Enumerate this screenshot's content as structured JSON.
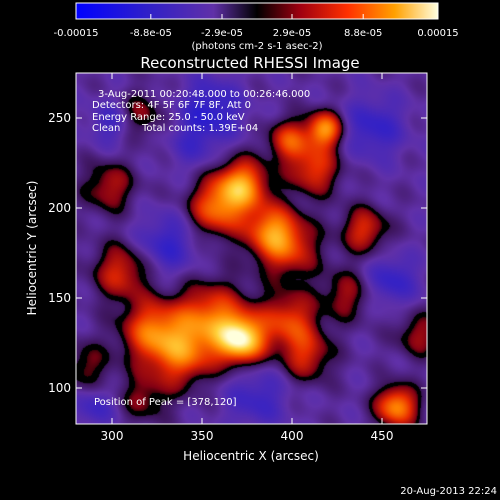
{
  "chart_data": {
    "type": "heatmap",
    "title": "Reconstructed RHESSI Image",
    "xlabel": "Heliocentric X (arcsec)",
    "ylabel": "Heliocentric Y (arcsec)",
    "xlim": [
      280,
      475
    ],
    "ylim": [
      80,
      275
    ],
    "x_ticks": [
      300,
      350,
      400,
      450
    ],
    "y_ticks": [
      100,
      150,
      200,
      250
    ],
    "colorbar": {
      "range": [
        -0.00015,
        0.00015
      ],
      "tick_labels": [
        "-0.00015",
        "-8.8e-05",
        "-2.9e-05",
        "2.9e-05",
        "8.8e-05",
        "0.00015"
      ],
      "tick_values": [
        -0.00015,
        -8.8e-05,
        -2.9e-05,
        2.9e-05,
        8.8e-05,
        0.00015
      ],
      "unit_label": "(photons cm-2 s-1 asec-2)"
    },
    "annotations": {
      "time": "3-Aug-2011 00:20:48.000 to 00:26:46.000",
      "detectors": "Detectors: 4F 5F 6F 7F 8F, Att 0",
      "energy": "Energy Range: 25.0 - 50.0 keV",
      "method": "Clean",
      "counts": "Total counts: 1.39E+04",
      "peak": "Position of Peak = [378,120]"
    },
    "blobs": [
      {
        "x": 372,
        "y": 127,
        "amp": 1.0,
        "sigma": 9
      },
      {
        "x": 355,
        "y": 138,
        "amp": 0.7,
        "sigma": 14
      },
      {
        "x": 322,
        "y": 132,
        "amp": 0.65,
        "sigma": 12
      },
      {
        "x": 338,
        "y": 118,
        "amp": 0.55,
        "sigma": 12
      },
      {
        "x": 305,
        "y": 165,
        "amp": 0.5,
        "sigma": 11
      },
      {
        "x": 398,
        "y": 138,
        "amp": 0.55,
        "sigma": 11
      },
      {
        "x": 408,
        "y": 118,
        "amp": 0.45,
        "sigma": 10
      },
      {
        "x": 372,
        "y": 213,
        "amp": 0.8,
        "sigma": 10
      },
      {
        "x": 358,
        "y": 200,
        "amp": 0.65,
        "sigma": 11
      },
      {
        "x": 388,
        "y": 188,
        "amp": 0.6,
        "sigma": 10
      },
      {
        "x": 398,
        "y": 178,
        "amp": 0.5,
        "sigma": 12
      },
      {
        "x": 412,
        "y": 222,
        "amp": 0.55,
        "sigma": 10
      },
      {
        "x": 418,
        "y": 244,
        "amp": 0.8,
        "sigma": 7
      },
      {
        "x": 398,
        "y": 238,
        "amp": 0.55,
        "sigma": 8
      },
      {
        "x": 440,
        "y": 188,
        "amp": 0.5,
        "sigma": 9
      },
      {
        "x": 298,
        "y": 212,
        "amp": 0.4,
        "sigma": 10
      },
      {
        "x": 315,
        "y": 252,
        "amp": 0.35,
        "sigma": 9
      },
      {
        "x": 458,
        "y": 90,
        "amp": 0.8,
        "sigma": 8
      },
      {
        "x": 470,
        "y": 130,
        "amp": 0.35,
        "sigma": 9
      },
      {
        "x": 430,
        "y": 152,
        "amp": 0.35,
        "sigma": 10
      },
      {
        "x": 285,
        "y": 112,
        "amp": 0.3,
        "sigma": 10
      },
      {
        "x": 318,
        "y": 95,
        "amp": 0.3,
        "sigma": 10
      },
      {
        "x": 355,
        "y": 255,
        "amp": -0.4,
        "sigma": 12
      },
      {
        "x": 330,
        "y": 180,
        "amp": -0.35,
        "sigma": 12
      },
      {
        "x": 455,
        "y": 160,
        "amp": -0.35,
        "sigma": 10
      },
      {
        "x": 300,
        "y": 248,
        "amp": -0.3,
        "sigma": 9
      },
      {
        "x": 445,
        "y": 245,
        "amp": -0.35,
        "sigma": 12
      },
      {
        "x": 380,
        "y": 95,
        "amp": -0.3,
        "sigma": 12
      },
      {
        "x": 290,
        "y": 90,
        "amp": -0.3,
        "sigma": 8
      },
      {
        "x": 345,
        "y": 235,
        "amp": -0.2,
        "sigma": 10
      }
    ]
  },
  "footer": {
    "timestamp": "20-Aug-2013 22:24"
  },
  "colors": {
    "background": "#000000",
    "text": "#ffffff"
  }
}
